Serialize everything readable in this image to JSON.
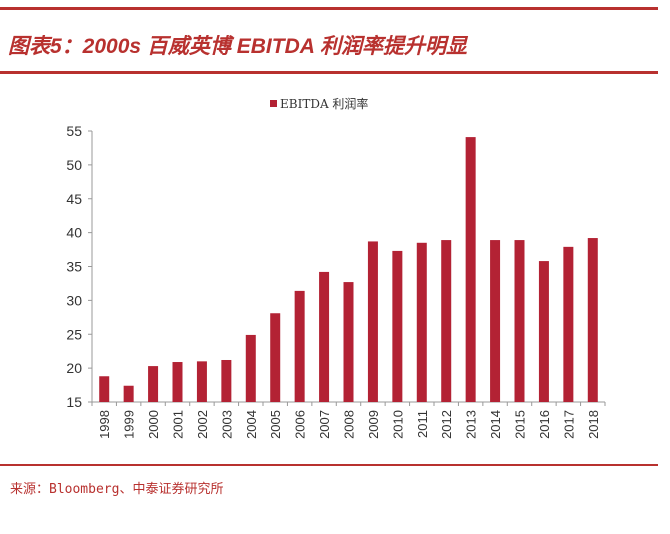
{
  "header": {
    "title": "图表5：2000s 百威英博 EBITDA 利润率提升明显"
  },
  "footer": {
    "source": "来源：Bloomberg、中泰证券研究所"
  },
  "colors": {
    "accent": "#b8312f",
    "bar": "#b32234"
  },
  "chart_data": {
    "type": "bar",
    "title": "",
    "xlabel": "",
    "ylabel": "",
    "ylim": [
      15,
      55
    ],
    "yticks": [
      15,
      20,
      25,
      30,
      35,
      40,
      45,
      50,
      55
    ],
    "grid": false,
    "legend": "top-center",
    "categories": [
      "1998",
      "1999",
      "2000",
      "2001",
      "2002",
      "2003",
      "2004",
      "2005",
      "2006",
      "2007",
      "2008",
      "2009",
      "2010",
      "2011",
      "2012",
      "2013",
      "2014",
      "2015",
      "2016",
      "2017",
      "2018"
    ],
    "series": [
      {
        "name": "EBITDA 利润率",
        "values": [
          18.8,
          17.4,
          20.3,
          20.9,
          21.0,
          21.2,
          24.9,
          28.1,
          31.4,
          34.2,
          32.7,
          38.7,
          37.3,
          38.5,
          38.9,
          54.1,
          38.9,
          38.9,
          35.8,
          37.9,
          39.2
        ]
      }
    ]
  }
}
